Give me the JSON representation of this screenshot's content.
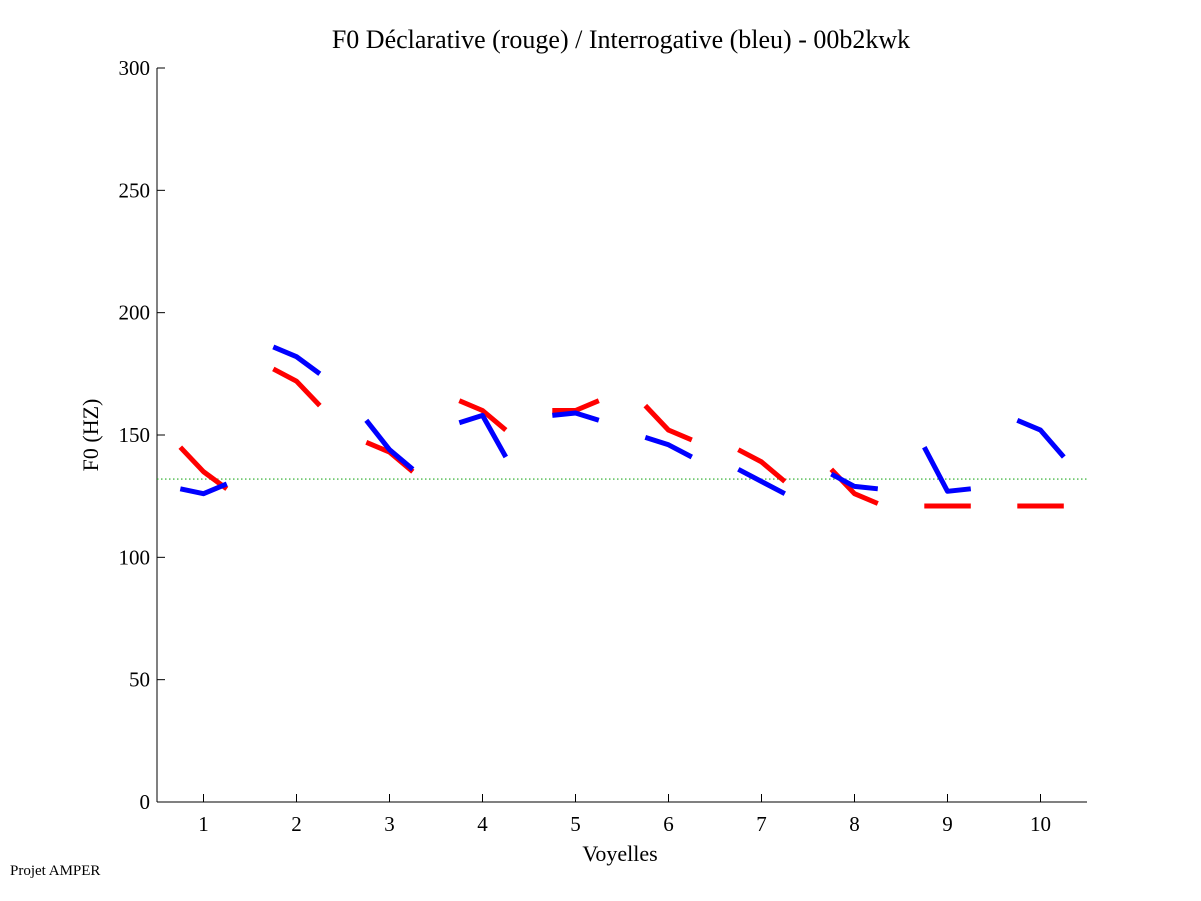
{
  "footer_text": "Projet AMPER",
  "chart_data": {
    "type": "line",
    "title": "F0 Déclarative (rouge) / Interrogative (bleu) - 00b2kwk",
    "xlabel": "Voyelles",
    "ylabel": "F0 (HZ)",
    "xlim": [
      0.5,
      10.5
    ],
    "ylim": [
      0,
      300
    ],
    "xticks": [
      "1",
      "2",
      "3",
      "4",
      "5",
      "6",
      "7",
      "8",
      "9",
      "10"
    ],
    "yticks": [
      "0",
      "50",
      "100",
      "150",
      "200",
      "250",
      "300"
    ],
    "reference_line": {
      "value": 132,
      "color": "#22aa22",
      "style": "dotted"
    },
    "series": [
      {
        "name": "Déclarative",
        "color": "#ff0000",
        "segments": [
          {
            "vowel": 1,
            "values": [
              145,
              135,
              128
            ]
          },
          {
            "vowel": 2,
            "values": [
              177,
              172,
              162
            ]
          },
          {
            "vowel": 3,
            "values": [
              147,
              143,
              135
            ]
          },
          {
            "vowel": 4,
            "values": [
              164,
              160,
              152
            ]
          },
          {
            "vowel": 5,
            "values": [
              160,
              160,
              164
            ]
          },
          {
            "vowel": 6,
            "values": [
              162,
              152,
              148
            ]
          },
          {
            "vowel": 7,
            "values": [
              144,
              139,
              131
            ]
          },
          {
            "vowel": 8,
            "values": [
              136,
              126,
              122
            ]
          },
          {
            "vowel": 9,
            "values": [
              121,
              121,
              121
            ]
          },
          {
            "vowel": 10,
            "values": [
              121,
              121,
              121
            ]
          }
        ]
      },
      {
        "name": "Interrogative",
        "color": "#0000ff",
        "segments": [
          {
            "vowel": 1,
            "values": [
              128,
              126,
              130
            ]
          },
          {
            "vowel": 2,
            "values": [
              186,
              182,
              175
            ]
          },
          {
            "vowel": 3,
            "values": [
              156,
              144,
              136
            ]
          },
          {
            "vowel": 4,
            "values": [
              155,
              158,
              141
            ]
          },
          {
            "vowel": 5,
            "values": [
              158,
              159,
              156
            ]
          },
          {
            "vowel": 6,
            "values": [
              149,
              146,
              141
            ]
          },
          {
            "vowel": 7,
            "values": [
              136,
              131,
              126
            ]
          },
          {
            "vowel": 8,
            "values": [
              134,
              129,
              128
            ]
          },
          {
            "vowel": 9,
            "values": [
              145,
              127,
              128
            ]
          },
          {
            "vowel": 10,
            "values": [
              156,
              152,
              141
            ]
          }
        ]
      }
    ]
  }
}
